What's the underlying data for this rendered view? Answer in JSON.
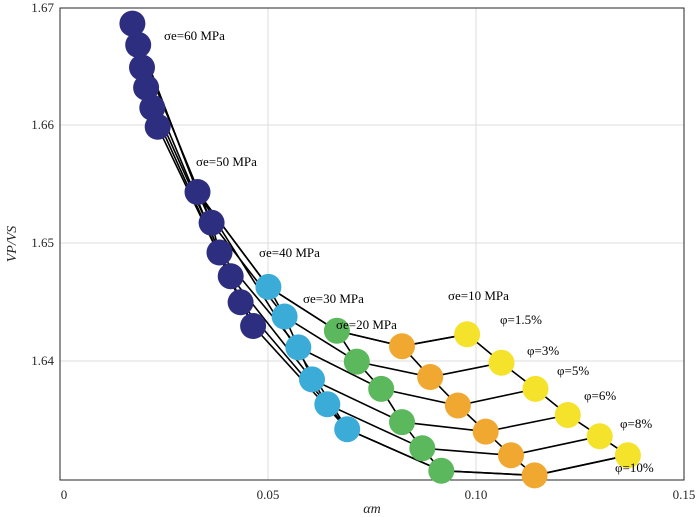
{
  "chart_data": {
    "type": "scatter",
    "xlabel": "αm",
    "ylabel": "VP/VS",
    "xlim": [
      0,
      0.15
    ],
    "ylim": [
      1.6302,
      1.67
    ],
    "grid": true,
    "x_ticks": [
      0,
      0.05,
      0.1,
      0.15
    ],
    "x_tick_labels": [
      "0",
      "0.05",
      "0.10",
      "0.15"
    ],
    "y_ticks": [
      1.64,
      1.65,
      1.66,
      1.67
    ],
    "y_tick_labels": [
      "1.64",
      "1.65",
      "1.66",
      "1.67"
    ],
    "pressure_labels": [
      "σe=60 MPa",
      "σe=50 MPa",
      "σe=40 MPa",
      "σe=30 MPa",
      "σe=20 MPa",
      "σe=10 MPa"
    ],
    "porosity_labels": [
      "φ=1.5%",
      "φ=3%",
      "φ=5%",
      "φ=6%",
      "φ=8%",
      "φ=10%"
    ],
    "series": [
      {
        "name": "σe=60 MPa",
        "color": "#2e2e80",
        "x": [
          0.0165,
          0.0179,
          0.0188,
          0.0198,
          0.0213,
          0.0226
        ],
        "y": [
          1.6686,
          1.6668,
          1.6649,
          1.6632,
          1.6615,
          1.6599
        ]
      },
      {
        "name": "σe=50 MPa",
        "color": "#2e2e80",
        "x": [
          0.0322,
          0.0356,
          0.0375,
          0.0402,
          0.0426,
          0.0456
        ],
        "y": [
          1.6544,
          1.6518,
          1.6493,
          1.6473,
          1.6451,
          1.6431
        ]
      },
      {
        "name": "σe=40 MPa",
        "color": "#3bacd8",
        "x": [
          0.0493,
          0.0532,
          0.0565,
          0.0598,
          0.0635,
          0.0683
        ],
        "y": [
          1.6464,
          1.6439,
          1.6413,
          1.6386,
          1.6365,
          1.6344
        ]
      },
      {
        "name": "σe=30 MPa",
        "color": "#5cb85c",
        "x": [
          0.0658,
          0.0706,
          0.0765,
          0.0815,
          0.0864,
          0.091
        ],
        "y": [
          1.6427,
          1.6401,
          1.6378,
          1.635,
          1.6328,
          1.6309
        ]
      },
      {
        "name": "σe=20 MPa",
        "color": "#f0a830",
        "x": [
          0.0815,
          0.0883,
          0.095,
          0.1017,
          0.1078,
          0.1135
        ],
        "y": [
          1.6414,
          1.6388,
          1.6364,
          1.6342,
          1.6322,
          1.6305
        ]
      },
      {
        "name": "σe=10 MPa",
        "color": "#f5e22a",
        "x": [
          0.0972,
          0.1055,
          0.1137,
          0.1215,
          0.1292,
          0.136
        ],
        "y": [
          1.6424,
          1.64,
          1.6378,
          1.6356,
          1.6338,
          1.6322
        ]
      }
    ],
    "pressure_connectors": [
      {
        "x": [
          0.0165,
          0.0322,
          0.0493,
          0.0658,
          0.0815,
          0.0972
        ],
        "y": [
          1.6686,
          1.6544,
          1.6464,
          1.6427,
          1.6414,
          1.6424
        ]
      },
      {
        "x": [
          0.0165,
          0.0322,
          0.0683,
          0.091,
          0.1135,
          0.136
        ],
        "y": [
          1.6686,
          1.6544,
          1.6344,
          1.6309,
          1.6305,
          1.6322
        ]
      }
    ]
  }
}
